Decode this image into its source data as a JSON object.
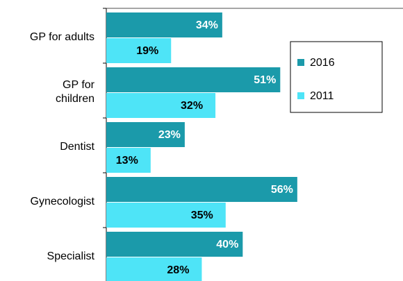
{
  "chart_data": {
    "type": "bar",
    "orientation": "horizontal",
    "categories": [
      "GP for adults",
      "GP for\nchildren",
      "Dentist",
      "Gynecologist",
      "Specialist"
    ],
    "series": [
      {
        "name": "2016",
        "color": "#1b9aaa",
        "values": [
          34,
          51,
          23,
          56,
          40
        ],
        "value_labels": [
          "34%",
          "51%",
          "23%",
          "56%",
          "40%"
        ]
      },
      {
        "name": "2011",
        "color": "#4ee4f7",
        "values": [
          19,
          32,
          13,
          35,
          28
        ],
        "value_labels": [
          "19%",
          "32%",
          "13%",
          "35%",
          "28%"
        ]
      }
    ],
    "xlim": [
      0,
      87
    ],
    "legend": "upper right"
  }
}
